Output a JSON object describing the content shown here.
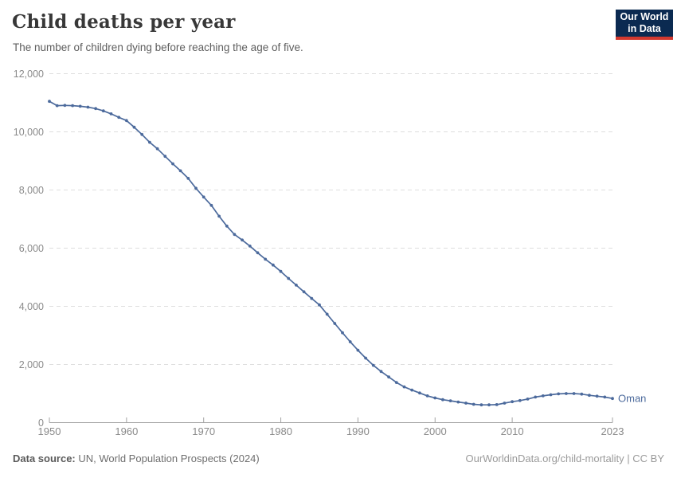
{
  "header": {
    "title": "Child deaths per year",
    "subtitle": "The number of children dying before reaching the age of five."
  },
  "logo": {
    "line1": "Our World",
    "line2": "in Data",
    "bg_color": "#0b2a51",
    "accent_color": "#d3392f"
  },
  "footer": {
    "source_label": "Data source:",
    "source_text": " UN, World Population Prospects (2024)",
    "link_text": "OurWorldinData.org/child-mortality | CC BY"
  },
  "colors": {
    "series_blue": "#4c6a9c",
    "gridline": "#dedede",
    "axis": "#a3a3a3",
    "tick_label": "#8a8a8a"
  },
  "chart_data": {
    "type": "line",
    "title": "Child deaths per year",
    "subtitle": "The number of children dying before reaching the age of five.",
    "entity_label": "Oman",
    "xlim": [
      1950,
      2023
    ],
    "ylim": [
      0,
      12000
    ],
    "xticks": [
      1950,
      1960,
      1970,
      1980,
      1990,
      2000,
      2010,
      2023
    ],
    "yticks": [
      0,
      2000,
      4000,
      6000,
      8000,
      10000,
      12000
    ],
    "ytick_labels": [
      "0",
      "2,000",
      "4,000",
      "6,000",
      "8,000",
      "10,000",
      "12,000"
    ],
    "grid": "horizontal-dashed",
    "legend_position": "end-of-line-label",
    "series": [
      {
        "name": "Oman",
        "color": "#4c6a9c",
        "x": [
          1950,
          1951,
          1952,
          1953,
          1954,
          1955,
          1956,
          1957,
          1958,
          1959,
          1960,
          1961,
          1962,
          1963,
          1964,
          1965,
          1966,
          1967,
          1968,
          1969,
          1970,
          1971,
          1972,
          1973,
          1974,
          1975,
          1976,
          1977,
          1978,
          1979,
          1980,
          1981,
          1982,
          1983,
          1984,
          1985,
          1986,
          1987,
          1988,
          1989,
          1990,
          1991,
          1992,
          1993,
          1994,
          1995,
          1996,
          1997,
          1998,
          1999,
          2000,
          2001,
          2002,
          2003,
          2004,
          2005,
          2006,
          2007,
          2008,
          2009,
          2010,
          2011,
          2012,
          2013,
          2014,
          2015,
          2016,
          2017,
          2018,
          2019,
          2020,
          2021,
          2022,
          2023
        ],
        "values": [
          11050,
          10900,
          10910,
          10900,
          10880,
          10850,
          10800,
          10720,
          10620,
          10500,
          10390,
          10160,
          9910,
          9640,
          9420,
          9160,
          8900,
          8660,
          8400,
          8060,
          7760,
          7470,
          7100,
          6760,
          6470,
          6280,
          6070,
          5840,
          5620,
          5420,
          5200,
          4960,
          4730,
          4500,
          4270,
          4050,
          3730,
          3410,
          3090,
          2780,
          2490,
          2220,
          1970,
          1760,
          1570,
          1380,
          1230,
          1120,
          1020,
          920,
          850,
          790,
          750,
          710,
          670,
          630,
          610,
          610,
          620,
          670,
          720,
          760,
          810,
          880,
          920,
          960,
          990,
          1000,
          1000,
          980,
          940,
          910,
          880,
          830
        ]
      }
    ]
  }
}
